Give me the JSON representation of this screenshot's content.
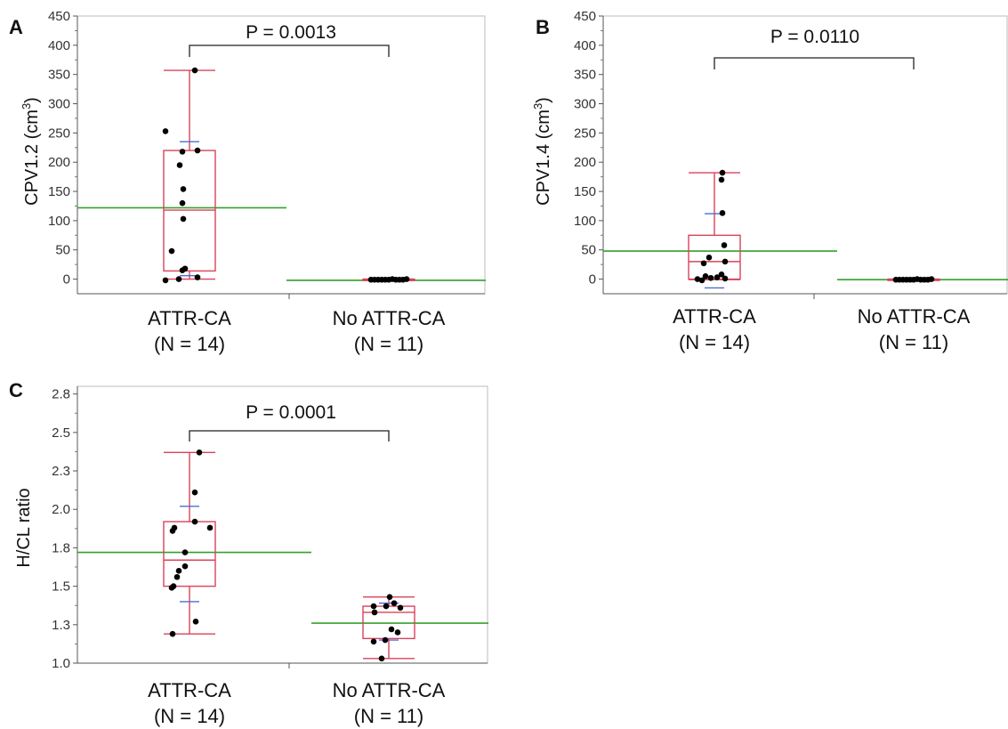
{
  "chart_data": [
    {
      "panel": "A",
      "type": "box",
      "ylabel_main": "CPV1.2 (cm",
      "ylabel_sup": "3",
      "ylabel_tail": ")",
      "ylim": [
        -25,
        450
      ],
      "yticks": [
        0,
        50,
        100,
        150,
        200,
        250,
        300,
        350,
        400,
        450
      ],
      "ytick_labels": [
        "0",
        "50",
        "100",
        "150",
        "200",
        "250",
        "300",
        "350",
        "400",
        "450"
      ],
      "categories": [
        "ATTR-CA",
        "No ATTR-CA"
      ],
      "category_n": [
        "(N = 14)",
        "(N = 11)"
      ],
      "p_value": "P = 0.0013",
      "boxes": [
        {
          "q1": 14,
          "median": 118,
          "q3": 220,
          "whisker_low": 0,
          "whisker_high": 357,
          "mean": 122,
          "mean_ci": [
            6,
            235
          ],
          "points": [
            -2,
            0,
            3,
            15,
            18,
            48,
            103,
            130,
            154,
            195,
            218,
            220,
            253,
            357
          ]
        },
        {
          "q1": -2,
          "median": -1,
          "q3": 0,
          "whisker_low": -2,
          "whisker_high": 0,
          "mean": -2,
          "mean_ci": null,
          "points": [
            -1,
            -1,
            -1,
            -1,
            -1,
            0,
            -1,
            -1,
            -1,
            -1,
            0
          ]
        }
      ]
    },
    {
      "panel": "B",
      "type": "box",
      "ylabel_main": "CPV1.4 (cm",
      "ylabel_sup": "3",
      "ylabel_tail": ")",
      "ylim": [
        -25,
        450
      ],
      "yticks": [
        0,
        50,
        100,
        150,
        200,
        250,
        300,
        350,
        400,
        450
      ],
      "ytick_labels": [
        "0",
        "50",
        "100",
        "150",
        "200",
        "250",
        "300",
        "350",
        "400",
        "450"
      ],
      "categories": [
        "ATTR-CA",
        "No ATTR-CA"
      ],
      "category_n": [
        "(N = 14)",
        "(N = 11)"
      ],
      "p_value": "P = 0.0110",
      "boxes": [
        {
          "q1": 0,
          "median": 30,
          "q3": 75,
          "whisker_low": -1,
          "whisker_high": 182,
          "mean": 48,
          "mean_ci": [
            -15,
            112
          ],
          "points": [
            -2,
            0,
            1,
            5,
            8,
            27,
            30,
            37,
            58,
            113,
            170,
            182,
            2,
            3
          ]
        },
        {
          "q1": -1,
          "median": -1,
          "q3": 0,
          "whisker_low": -1,
          "whisker_high": 0,
          "mean": -1,
          "mean_ci": null,
          "points": [
            -1,
            -1,
            -1,
            -1,
            -1,
            0,
            -1,
            -1,
            -1,
            -1,
            0
          ]
        }
      ]
    },
    {
      "panel": "C",
      "type": "box",
      "ylabel": "H/CL ratio",
      "ylim": [
        1.0,
        2.8
      ],
      "yticks": [
        1.0,
        1.25,
        1.5,
        1.75,
        2.0,
        2.25,
        2.5,
        2.75
      ],
      "ytick_labels": [
        "1.0",
        "1.3",
        "1.5",
        "1.8",
        "2.0",
        "2.3",
        "2.5",
        "2.8"
      ],
      "categories": [
        "ATTR-CA",
        "No ATTR-CA"
      ],
      "category_n": [
        "(N = 14)",
        "(N = 11)"
      ],
      "p_value": "P = 0.0001",
      "boxes": [
        {
          "q1": 1.5,
          "median": 1.67,
          "q3": 1.92,
          "whisker_low": 1.19,
          "whisker_high": 2.37,
          "mean": 1.72,
          "mean_ci": [
            1.4,
            2.02
          ],
          "points": [
            1.19,
            1.27,
            1.49,
            1.5,
            1.56,
            1.6,
            1.63,
            1.72,
            1.86,
            1.88,
            1.88,
            1.92,
            2.11,
            2.37
          ]
        },
        {
          "q1": 1.16,
          "median": 1.33,
          "q3": 1.37,
          "whisker_low": 1.03,
          "whisker_high": 1.43,
          "mean": 1.26,
          "mean_ci": [
            1.15,
            1.39
          ],
          "points": [
            1.03,
            1.14,
            1.15,
            1.2,
            1.22,
            1.33,
            1.36,
            1.37,
            1.37,
            1.39,
            1.43
          ]
        }
      ]
    }
  ],
  "colors": {
    "box": "#d9435a",
    "mean_line": "#33a02c",
    "ci": "#4a6fd1",
    "point": "#000000",
    "frame": "#bdbdbd",
    "text": "#111111"
  }
}
